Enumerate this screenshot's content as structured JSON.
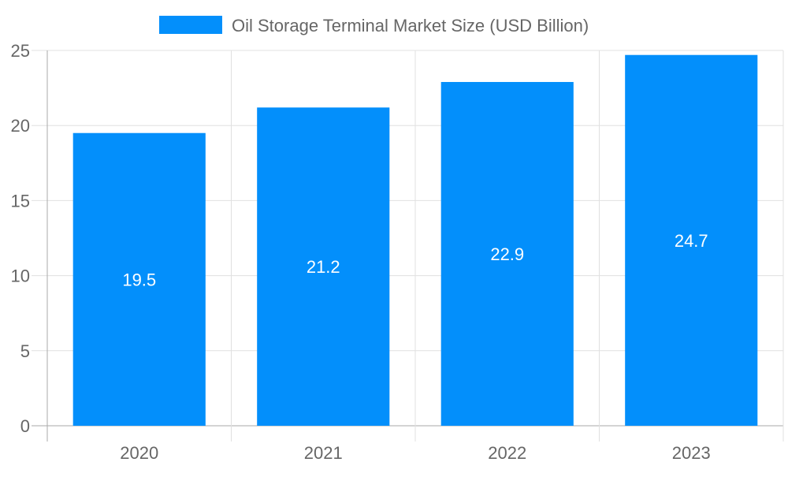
{
  "chart_data": {
    "type": "bar",
    "title": "",
    "xlabel": "",
    "ylabel": "",
    "categories": [
      "2020",
      "2021",
      "2022",
      "2023"
    ],
    "series": [
      {
        "name": "Oil Storage Terminal Market Size (USD Billion)",
        "values": [
          19.5,
          21.2,
          22.9,
          24.7
        ]
      }
    ],
    "data_labels": [
      "19.5",
      "21.2",
      "22.9",
      "24.7"
    ],
    "ylim": [
      0,
      25
    ],
    "yticks": [
      "0",
      "5",
      "10",
      "15",
      "20",
      "25"
    ],
    "grid": true,
    "legend_position": "top",
    "colors": {
      "bar": "#038ffb",
      "grid": "#e0e0e0",
      "axis": "#aaaaaa",
      "text": "#666666",
      "label": "#ffffff"
    }
  }
}
